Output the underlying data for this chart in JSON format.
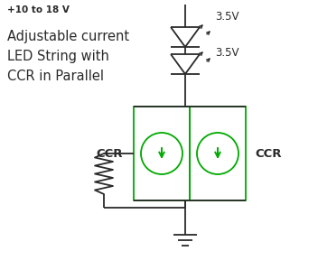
{
  "bg_color": "#ffffff",
  "dark_color": "#2a2a2a",
  "green_color": "#00aa00",
  "voltage_label1": "3.5V",
  "voltage_label2": "3.5V",
  "supply_label": "+10 to 18 V",
  "desc_line1": "Adjustable current",
  "desc_line2": "LED String with",
  "desc_line3": "CCR in Parallel",
  "ccr_label_left": "CCR",
  "ccr_label_right": "CCR",
  "figw": 3.52,
  "figh": 3.09,
  "dpi": 100
}
